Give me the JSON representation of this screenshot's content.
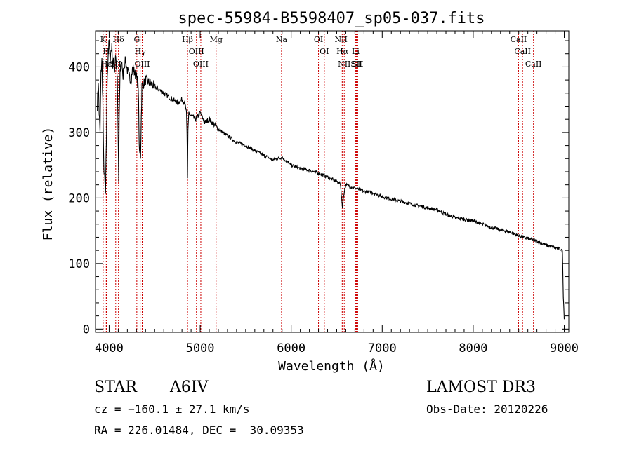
{
  "chart_data": {
    "type": "line",
    "title": "spec-55984-B5598407_sp05-037.fits",
    "xlabel": "Wavelength (Å)",
    "ylabel": "Flux (relative)",
    "xlim": [
      3850,
      9050
    ],
    "ylim": [
      -5,
      455
    ],
    "xticks": [
      4000,
      5000,
      6000,
      7000,
      8000,
      9000
    ],
    "yticks": [
      0,
      100,
      200,
      300,
      400
    ],
    "series": [
      {
        "name": "flux",
        "x": [
          3870,
          3880,
          3890,
          3900,
          3910,
          3920,
          3930,
          3940,
          3950,
          3960,
          3970,
          3980,
          3990,
          4000,
          4010,
          4020,
          4030,
          4040,
          4050,
          4060,
          4070,
          4080,
          4090,
          4100,
          4105,
          4110,
          4120,
          4130,
          4140,
          4150,
          4160,
          4180,
          4200,
          4220,
          4240,
          4260,
          4280,
          4300,
          4320,
          4330,
          4340,
          4345,
          4350,
          4360,
          4380,
          4400,
          4450,
          4500,
          4550,
          4600,
          4650,
          4700,
          4750,
          4800,
          4830,
          4850,
          4855,
          4861,
          4866,
          4875,
          4900,
          4950,
          5000,
          5050,
          5100,
          5200,
          5300,
          5400,
          5500,
          5600,
          5700,
          5800,
          5900,
          6000,
          6100,
          6200,
          6300,
          6400,
          6500,
          6540,
          6555,
          6563,
          6570,
          6585,
          6600,
          6700,
          6800,
          6900,
          7000,
          7200,
          7400,
          7600,
          7700,
          7800,
          8000,
          8200,
          8400,
          8500,
          8600,
          8700,
          8800,
          8900,
          8960,
          8980,
          8990,
          9000
        ],
        "y": [
          340,
          380,
          330,
          300,
          390,
          410,
          350,
          250,
          230,
          205,
          290,
          390,
          420,
          440,
          410,
          425,
          430,
          400,
          410,
          395,
          420,
          400,
          380,
          280,
          225,
          320,
          390,
          405,
          410,
          380,
          400,
          410,
          395,
          385,
          380,
          400,
          390,
          385,
          370,
          280,
          270,
          260,
          300,
          370,
          375,
          380,
          375,
          370,
          365,
          360,
          355,
          350,
          345,
          350,
          345,
          330,
          300,
          230,
          300,
          330,
          325,
          320,
          330,
          315,
          320,
          305,
          295,
          285,
          280,
          272,
          265,
          258,
          262,
          250,
          245,
          242,
          238,
          232,
          225,
          222,
          200,
          185,
          195,
          212,
          220,
          215,
          210,
          208,
          202,
          195,
          188,
          182,
          175,
          170,
          165,
          155,
          148,
          142,
          138,
          134,
          128,
          124,
          122,
          118,
          50,
          15
        ]
      }
    ],
    "lines": [
      {
        "name": "K",
        "x": 3934
      },
      {
        "name": "H",
        "x": 3968
      },
      {
        "name": "Hε",
        "x": 3970
      },
      {
        "name": "SII",
        "x": 4072
      },
      {
        "name": "Hδ",
        "x": 4102
      },
      {
        "name": "G",
        "x": 4304
      },
      {
        "name": "Hγ",
        "x": 4341
      },
      {
        "name": "OIII",
        "x": 4363
      },
      {
        "name": "Hβ",
        "x": 4861
      },
      {
        "name": "OIII",
        "x": 4959
      },
      {
        "name": "OIII",
        "x": 5007
      },
      {
        "name": "Mg",
        "x": 5175
      },
      {
        "name": "Na",
        "x": 5894
      },
      {
        "name": "OI",
        "x": 6300
      },
      {
        "name": "OI",
        "x": 6364
      },
      {
        "name": "NII",
        "x": 6548
      },
      {
        "name": "Hα",
        "x": 6563
      },
      {
        "name": "NII",
        "x": 6583
      },
      {
        "name": "Li",
        "x": 6708
      },
      {
        "name": "SII",
        "x": 6716
      },
      {
        "name": "SII",
        "x": 6731
      },
      {
        "name": "CaII",
        "x": 8498
      },
      {
        "name": "CaII",
        "x": 8542
      },
      {
        "name": "CaII",
        "x": 8662
      }
    ],
    "line_color": "#cc0000",
    "series_color": "#000000"
  },
  "info": {
    "object_class": "STAR",
    "subclass": "A6IV",
    "survey": "LAMOST DR3",
    "redshift": "cz = −160.1 ± 27.1 km/s",
    "obs_date": "Obs-Date: 20120226",
    "coords": "RA = 226.01484, DEC =  30.09353"
  }
}
